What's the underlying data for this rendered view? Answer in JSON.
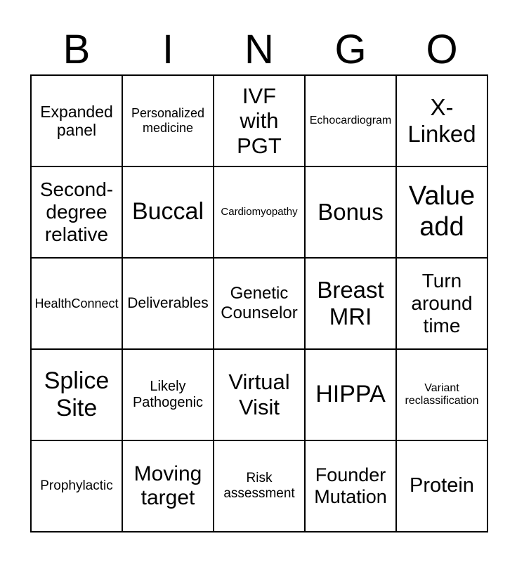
{
  "header": {
    "letters": [
      "B",
      "I",
      "N",
      "G",
      "O"
    ]
  },
  "board": {
    "rows": 5,
    "cols": 5,
    "cells": [
      "Expanded\npanel",
      "Personalized\nmedicine",
      "IVF\nwith\nPGT",
      "Echocardiogram",
      "X-\nLinked",
      "Second-\ndegree\nrelative",
      "Buccal",
      "Cardiomyopathy",
      "Bonus",
      "Value\nadd",
      "HealthConnect",
      "Deliverables",
      "Genetic\nCounselor",
      "Breast\nMRI",
      "Turn\naround\ntime",
      "Splice\nSite",
      "Likely\nPathogenic",
      "Virtual\nVisit",
      "HIPPA",
      "Variant\nreclassification",
      "Prophylactic",
      "Moving\ntarget",
      "Risk\nassessment",
      "Founder\nMutation",
      "Protein"
    ]
  },
  "colors": {
    "background": "#ffffff",
    "grid_line": "#000000",
    "text": "#000000"
  }
}
